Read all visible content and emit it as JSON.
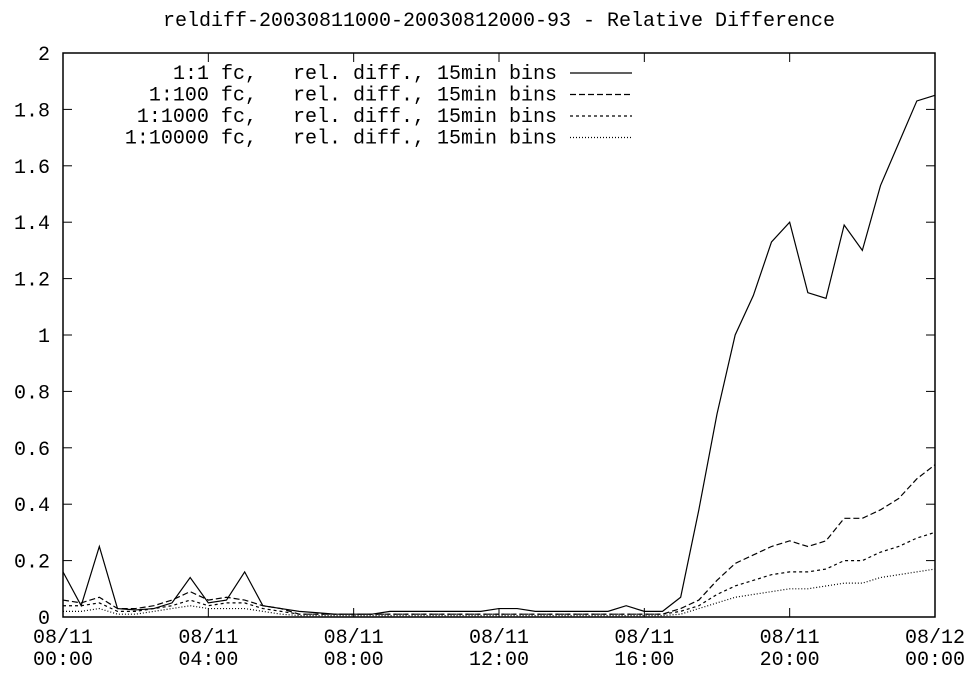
{
  "chart_data": {
    "type": "line",
    "title": "reldiff-20030811000-20030812000-93 - Relative Difference",
    "x": [
      0,
      0.5,
      1,
      1.5,
      2,
      2.5,
      3,
      3.5,
      4,
      4.5,
      5,
      5.5,
      6,
      6.5,
      7,
      7.5,
      8,
      8.5,
      9,
      9.5,
      10,
      10.5,
      11,
      11.5,
      12,
      12.5,
      13,
      13.5,
      14,
      14.5,
      15,
      15.5,
      16,
      16.5,
      17,
      17.5,
      18,
      18.5,
      19,
      19.5,
      20,
      20.5,
      21,
      21.5,
      22,
      22.5,
      23,
      23.5,
      24
    ],
    "xlim": [
      0,
      24
    ],
    "xticks": [
      {
        "value": 0,
        "label": "08/11 00:00"
      },
      {
        "value": 4,
        "label": "08/11 04:00"
      },
      {
        "value": 8,
        "label": "08/11 08:00"
      },
      {
        "value": 12,
        "label": "08/11 12:00"
      },
      {
        "value": 16,
        "label": "08/11 16:00"
      },
      {
        "value": 20,
        "label": "08/11 20:00"
      },
      {
        "value": 24,
        "label": "08/12 00:00"
      }
    ],
    "ylim": [
      0,
      2
    ],
    "yticks": [
      0,
      0.2,
      0.4,
      0.6,
      0.8,
      1,
      1.2,
      1.4,
      1.6,
      1.8,
      2
    ],
    "legend": "top-left",
    "series": [
      {
        "name": "1:1 fc,   rel. diff., 15min bins",
        "color": "#000000",
        "dash": "none",
        "values": [
          0.16,
          0.04,
          0.25,
          0.03,
          0.025,
          0.03,
          0.05,
          0.14,
          0.05,
          0.06,
          0.16,
          0.04,
          0.03,
          0.02,
          0.015,
          0.01,
          0.01,
          0.01,
          0.02,
          0.02,
          0.02,
          0.02,
          0.02,
          0.02,
          0.03,
          0.03,
          0.02,
          0.02,
          0.02,
          0.02,
          0.02,
          0.04,
          0.02,
          0.02,
          0.07,
          0.38,
          0.72,
          1.0,
          1.14,
          1.33,
          1.4,
          1.15,
          1.13,
          1.39,
          1.3,
          1.53,
          1.68,
          1.83,
          1.85
        ]
      },
      {
        "name": "1:100 fc,   rel. diff., 15min bins",
        "color": "#000000",
        "dash": "6 3",
        "values": [
          0.06,
          0.05,
          0.07,
          0.03,
          0.03,
          0.04,
          0.06,
          0.09,
          0.06,
          0.07,
          0.06,
          0.04,
          0.03,
          0.01,
          0.01,
          0.01,
          0.01,
          0.01,
          0.01,
          0.01,
          0.01,
          0.01,
          0.01,
          0.01,
          0.01,
          0.01,
          0.01,
          0.01,
          0.01,
          0.01,
          0.01,
          0.01,
          0.01,
          0.01,
          0.03,
          0.06,
          0.13,
          0.19,
          0.22,
          0.25,
          0.27,
          0.25,
          0.27,
          0.35,
          0.35,
          0.38,
          0.42,
          0.49,
          0.54
        ]
      },
      {
        "name": "1:1000 fc,   rel. diff., 15min bins",
        "color": "#000000",
        "dash": "3 3",
        "values": [
          0.04,
          0.04,
          0.05,
          0.02,
          0.02,
          0.03,
          0.04,
          0.06,
          0.04,
          0.05,
          0.05,
          0.03,
          0.02,
          0.01,
          0.01,
          0.01,
          0.01,
          0.01,
          0.01,
          0.01,
          0.01,
          0.01,
          0.01,
          0.01,
          0.01,
          0.01,
          0.01,
          0.01,
          0.01,
          0.01,
          0.01,
          0.01,
          0.01,
          0.01,
          0.02,
          0.04,
          0.08,
          0.11,
          0.13,
          0.15,
          0.16,
          0.16,
          0.17,
          0.2,
          0.2,
          0.23,
          0.25,
          0.28,
          0.3
        ]
      },
      {
        "name": "1:10000 fc,   rel. diff., 15min bins",
        "color": "#000000",
        "dash": "1 2",
        "values": [
          0.02,
          0.02,
          0.03,
          0.01,
          0.01,
          0.02,
          0.03,
          0.04,
          0.03,
          0.03,
          0.03,
          0.02,
          0.01,
          0.005,
          0.005,
          0.005,
          0.005,
          0.005,
          0.005,
          0.005,
          0.005,
          0.005,
          0.005,
          0.005,
          0.005,
          0.005,
          0.005,
          0.005,
          0.005,
          0.005,
          0.005,
          0.005,
          0.005,
          0.005,
          0.01,
          0.03,
          0.05,
          0.07,
          0.08,
          0.09,
          0.1,
          0.1,
          0.11,
          0.12,
          0.12,
          0.14,
          0.15,
          0.16,
          0.17
        ]
      }
    ]
  }
}
